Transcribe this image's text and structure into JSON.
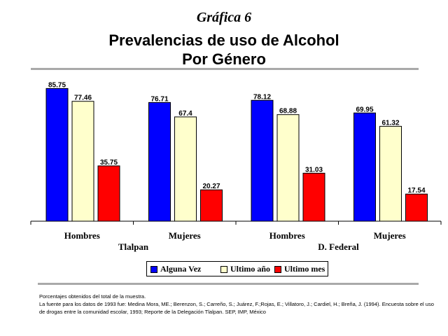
{
  "header": {
    "kicker": "Gráfica 6",
    "title_line1": "Prevalencias de uso de Alcohol",
    "title_line2": "Por Género"
  },
  "chart_data": {
    "type": "bar",
    "categories": [
      "Hombres",
      "Mujeres",
      "Hombres",
      "Mujeres"
    ],
    "groups": [
      {
        "label": "Tlalpan",
        "categories": [
          "Hombres",
          "Mujeres"
        ]
      },
      {
        "label": "D. Federal",
        "categories": [
          "Hombres",
          "Mujeres"
        ]
      }
    ],
    "series": [
      {
        "name": "Alguna Vez",
        "color": "#0000ff",
        "values": [
          85.75,
          76.71,
          78.12,
          69.95
        ],
        "labels": [
          "85.75",
          "76.71",
          "78.12",
          "69.95"
        ]
      },
      {
        "name": "Ultimo año",
        "color": "#ffffcc",
        "values": [
          77.46,
          67.4,
          68.88,
          61.32
        ],
        "labels": [
          "77.46",
          "67.4",
          "68.88",
          "61.32"
        ]
      },
      {
        "name": "Ultimo mes",
        "color": "#ff0000",
        "values": [
          35.75,
          20.27,
          31.03,
          17.54
        ],
        "labels": [
          "35.75",
          "20.27",
          "31.03",
          "17.54"
        ]
      }
    ],
    "ylim": [
      0,
      90
    ],
    "grid": false,
    "legend_position": "bottom"
  },
  "notes": {
    "line1": "Porcentajes obtenidos del total de la muestra.",
    "line2": "La fuente para los datos de 1993 fue: Medina Mora, ME.; Berenzon, S.; Carreño, S.; Juárez, F.;Rojas, E.; Villatoro, J.; Cardiel, H.; Breña, J. (1994). Encuesta sobre el uso de drogas entre la comunidad escolar, 1993; Reporte de la Delegación Tlalpan. SEP, IMP, México"
  }
}
